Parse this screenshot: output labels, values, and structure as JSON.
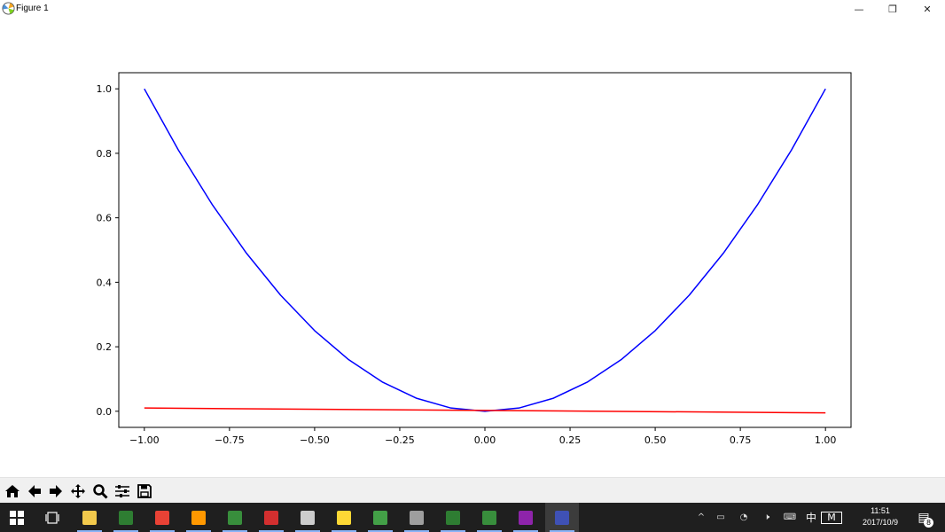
{
  "window": {
    "title": "Figure 1",
    "controls": [
      "—",
      "❐",
      "✕"
    ]
  },
  "chart_data": {
    "type": "line",
    "title": "",
    "xlabel": "",
    "ylabel": "",
    "xlim": [
      -1.075,
      1.075
    ],
    "ylim": [
      -0.05,
      1.05
    ],
    "x_ticks": [
      -1.0,
      -0.75,
      -0.5,
      -0.25,
      0.0,
      0.25,
      0.5,
      0.75,
      1.0
    ],
    "x_tick_labels": [
      "−1.00",
      "−0.75",
      "−0.50",
      "−0.25",
      "0.00",
      "0.25",
      "0.50",
      "0.75",
      "1.00"
    ],
    "y_ticks": [
      0.0,
      0.2,
      0.4,
      0.6,
      0.8,
      1.0
    ],
    "y_tick_labels": [
      "0.0",
      "0.2",
      "0.4",
      "0.6",
      "0.8",
      "1.0"
    ],
    "grid": false,
    "series": [
      {
        "color": "#0000ff",
        "x": [
          -1.0,
          -0.9,
          -0.8,
          -0.7,
          -0.6,
          -0.5,
          -0.4,
          -0.3,
          -0.2,
          -0.1,
          0.0,
          0.1,
          0.2,
          0.3,
          0.4,
          0.5,
          0.6,
          0.7,
          0.8,
          0.9,
          1.0
        ],
        "y": [
          1.0,
          0.81,
          0.64,
          0.49,
          0.36,
          0.25,
          0.16,
          0.09,
          0.04,
          0.01,
          0.0,
          0.01,
          0.04,
          0.09,
          0.16,
          0.25,
          0.36,
          0.49,
          0.64,
          0.81,
          1.0
        ]
      },
      {
        "color": "#ff0000",
        "x": [
          -1.0,
          1.0
        ],
        "y": [
          0.01,
          -0.005
        ]
      }
    ]
  },
  "toolbar": {
    "tools": [
      "home-icon",
      "back-icon",
      "forward-icon",
      "pan-icon",
      "zoom-icon",
      "configure-subplots-icon",
      "save-icon"
    ]
  },
  "taskbar": {
    "clock_time": "11:51",
    "clock_date": "2017/10/9",
    "ime_label": "中",
    "ime_mode": "M",
    "notification_count": "8",
    "apps": [
      {
        "name": "file-explorer-icon",
        "color": "#f2c94c"
      },
      {
        "name": "terminal-icon",
        "color": "#2e7d32"
      },
      {
        "name": "chrome-icon",
        "color": "#e94235"
      },
      {
        "name": "sublime-icon",
        "color": "#ff9800"
      },
      {
        "name": "app-icon-1",
        "color": "#388e3c"
      },
      {
        "name": "wps-icon",
        "color": "#d32f2f"
      },
      {
        "name": "feather-icon",
        "color": "#cccccc"
      },
      {
        "name": "sticky-notes-icon",
        "color": "#fdd835"
      },
      {
        "name": "wechat-icon",
        "color": "#43a047"
      },
      {
        "name": "monitor-icon",
        "color": "#9e9e9e"
      },
      {
        "name": "spreadsheet-icon",
        "color": "#2e7d32"
      },
      {
        "name": "vim-icon",
        "color": "#388e3c"
      },
      {
        "name": "winrar-icon",
        "color": "#8e24aa"
      },
      {
        "name": "python-icon",
        "color": "#3f51b5"
      }
    ]
  }
}
